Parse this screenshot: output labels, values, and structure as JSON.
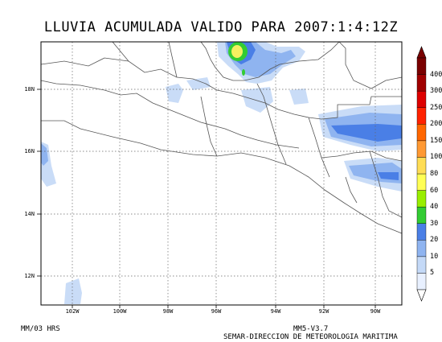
{
  "title": "LLUVIA ACUMULADA VALIDO PARA 2007:1:4:12Z",
  "footer": {
    "units": "MM/03 HRS",
    "model": "MM5-V3.7",
    "credit": "SEMAR-DIRECCION DE METEOROLOGIA MARITIMA"
  },
  "lat_labels": [
    "18N",
    "16N",
    "14N",
    "12N"
  ],
  "lon_labels": [
    "102W",
    "100W",
    "98W",
    "96W",
    "94W",
    "92W",
    "90W"
  ],
  "colorbar": {
    "levels": [
      "5",
      "10",
      "20",
      "30",
      "40",
      "60",
      "80",
      "100",
      "150",
      "200",
      "250",
      "300",
      "400"
    ],
    "colors": [
      "#e8f0ff",
      "#c4d9f7",
      "#8fb4f0",
      "#4a7fe6",
      "#33cc33",
      "#99ee00",
      "#ffff55",
      "#ffdd55",
      "#ff9933",
      "#ff6600",
      "#ff2200",
      "#dd0000",
      "#a00000",
      "#7a0000"
    ]
  },
  "colors": {
    "land_line": "#555555",
    "grid": "#666666",
    "rain_light": "#c9dcf7",
    "rain_mid": "#8fb4f0",
    "rain_strong": "#4a7fe6",
    "rain_green": "#33cc33",
    "rain_yellow": "#f5f060"
  }
}
